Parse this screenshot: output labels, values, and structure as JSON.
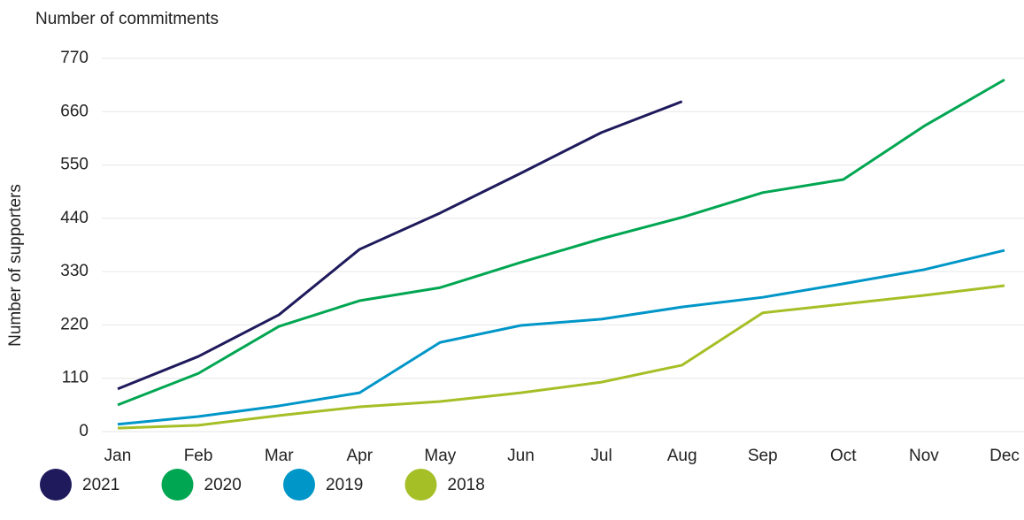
{
  "chart_data": {
    "type": "line",
    "title": "Number of commitments",
    "y_label": "Number of supporters",
    "categories": [
      "Jan",
      "Feb",
      "Mar",
      "Apr",
      "May",
      "Jun",
      "Jul",
      "Aug",
      "Sep",
      "Oct",
      "Nov",
      "Dec"
    ],
    "series": [
      {
        "name": "2021",
        "color": "#1e1a5c",
        "values": [
          88,
          155,
          241,
          376,
          451,
          533,
          617,
          681,
          null,
          null,
          null,
          null
        ]
      },
      {
        "name": "2020",
        "color": "#00a651",
        "values": [
          55,
          120,
          217,
          270,
          297,
          349,
          398,
          442,
          493,
          520,
          630,
          726
        ]
      },
      {
        "name": "2019",
        "color": "#0096c8",
        "values": [
          15,
          31,
          53,
          80,
          184,
          219,
          232,
          257,
          277,
          305,
          334,
          374
        ]
      },
      {
        "name": "2018",
        "color": "#a5bf26",
        "values": [
          7,
          13,
          33,
          51,
          62,
          80,
          102,
          137,
          245,
          263,
          281,
          301
        ]
      }
    ],
    "ylim": [
      0,
      770
    ],
    "yticks": [
      0,
      110,
      220,
      330,
      440,
      550,
      660,
      770
    ],
    "grid": true,
    "legend": "bottom-left"
  }
}
